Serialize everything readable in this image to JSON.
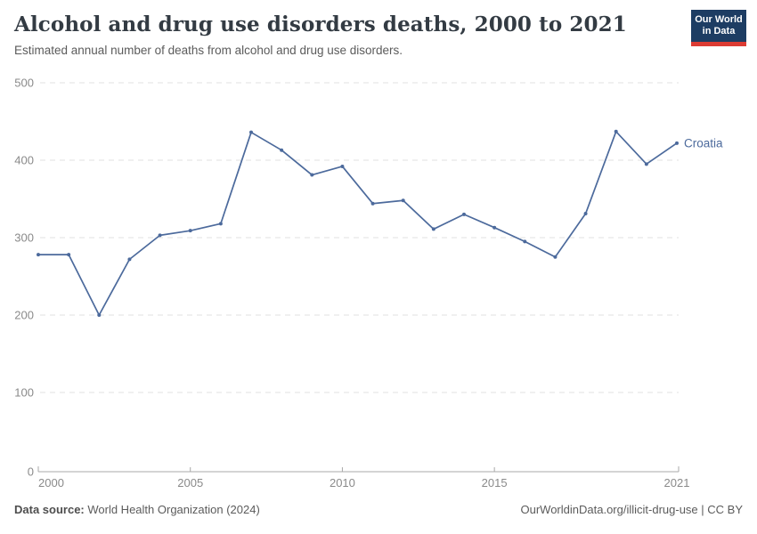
{
  "header": {
    "title": "Alcohol and drug use disorders deaths, 2000 to 2021",
    "subtitle": "Estimated annual number of deaths from alcohol and drug use disorders.",
    "logo": {
      "line1": "Our World",
      "line2": "in Data",
      "bg_color": "#1d3d63",
      "accent_color": "#dc3b33"
    }
  },
  "chart_data": {
    "type": "line",
    "title": "Alcohol and drug use disorders deaths, 2000 to 2021",
    "xlabel": "",
    "ylabel": "",
    "xlim": [
      2000,
      2021
    ],
    "ylim": [
      0,
      500
    ],
    "x": [
      2000,
      2001,
      2002,
      2003,
      2004,
      2005,
      2006,
      2007,
      2008,
      2009,
      2010,
      2011,
      2012,
      2013,
      2014,
      2015,
      2016,
      2017,
      2018,
      2019,
      2020,
      2021
    ],
    "series": [
      {
        "name": "Croatia",
        "color": "#4C6A9C",
        "values": [
          278,
          278,
          200,
          272,
          303,
          309,
          318,
          436,
          413,
          381,
          392,
          344,
          348,
          311,
          330,
          313,
          295,
          275,
          331,
          437,
          395,
          422
        ]
      }
    ],
    "x_ticks": [
      2000,
      2005,
      2010,
      2015,
      2021
    ],
    "y_ticks": [
      0,
      100,
      200,
      300,
      400,
      500
    ],
    "grid": "horizontal-dashed",
    "legend": "end-of-line-label"
  },
  "footer": {
    "source_label": "Data source:",
    "source_text": " World Health Organization (2024)",
    "attribution": "OurWorldinData.org/illicit-drug-use | CC BY"
  }
}
